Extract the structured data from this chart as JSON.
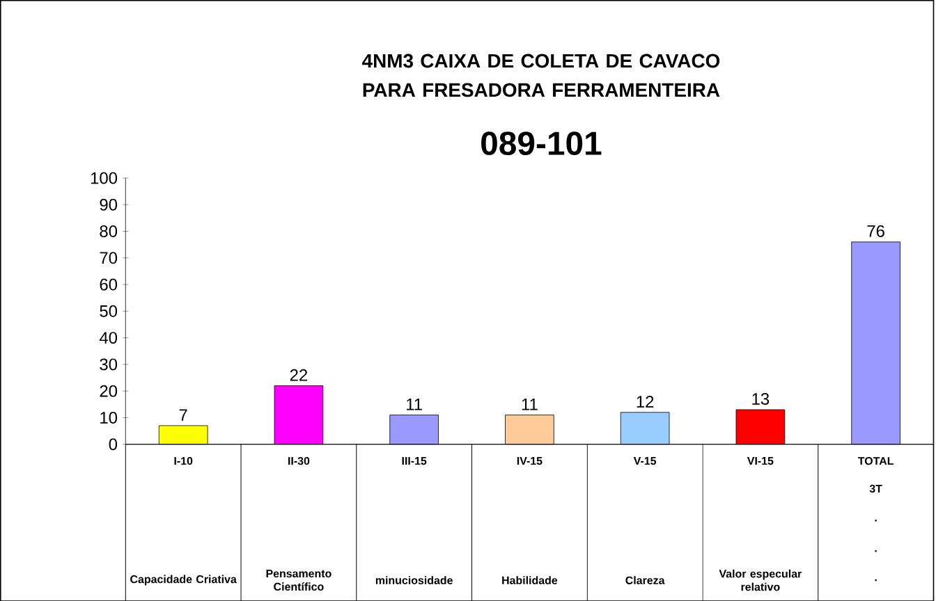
{
  "chart_data": {
    "type": "bar",
    "title": "4NM3 CAIXA DE COLETA DE CAVACO PARA FRESADORA FERRAMENTEIRA",
    "subtitle": "089-101",
    "categories": [
      "I-10",
      "II-30",
      "III-15",
      "IV-15",
      "V-15",
      "VI-15",
      "TOTAL"
    ],
    "values": [
      7,
      22,
      11,
      11,
      12,
      13,
      76
    ],
    "colors": [
      "#ffff00",
      "#ff00ff",
      "#9999ff",
      "#ffcc99",
      "#99ccff",
      "#ff0000",
      "#9999ff"
    ],
    "ylim": [
      0,
      100
    ],
    "yticks": [
      0,
      10,
      20,
      30,
      40,
      50,
      60,
      70,
      80,
      90,
      100
    ],
    "grid": false,
    "data_labels": true,
    "annotations": [
      "Capacidade Criativa",
      "Pensamento Científico",
      "minuciosidade",
      "Habilidade",
      "Clareza",
      "Valor especular relativo",
      "3T",
      ".",
      ".",
      "."
    ]
  }
}
